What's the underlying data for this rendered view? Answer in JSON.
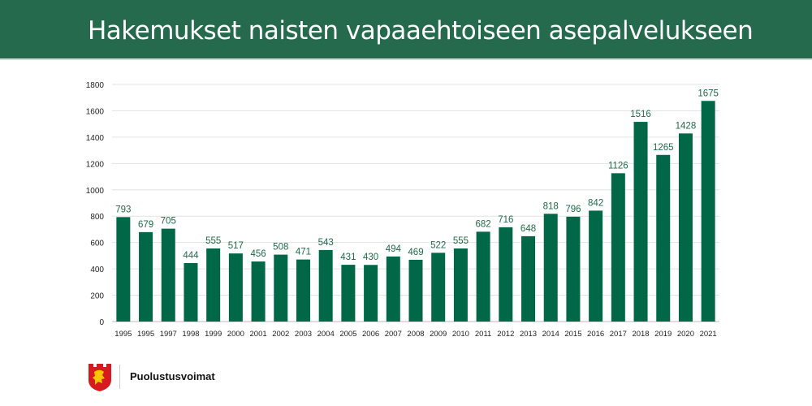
{
  "header": {
    "title": "Hakemukset naisten vapaaehtoiseen asepalvelukseen"
  },
  "footer": {
    "brand": "Puolustusvoimat"
  },
  "colors": {
    "header": "#256a4d",
    "bar": "#006847",
    "label": "#1e6b4a"
  },
  "chart_data": {
    "type": "bar",
    "title": "Hakemukset naisten vapaaehtoiseen asepalvelukseen",
    "categories": [
      "1995",
      "1995",
      "1997",
      "1998",
      "1999",
      "2000",
      "2001",
      "2002",
      "2003",
      "2004",
      "2005",
      "2006",
      "2007",
      "2008",
      "2009",
      "2010",
      "2011",
      "2012",
      "2013",
      "2014",
      "2015",
      "2016",
      "2017",
      "2018",
      "2019",
      "2020",
      "2021"
    ],
    "values": [
      793,
      679,
      705,
      444,
      555,
      517,
      456,
      508,
      471,
      543,
      431,
      430,
      494,
      469,
      522,
      555,
      682,
      716,
      648,
      818,
      796,
      842,
      1126,
      1516,
      1265,
      1428,
      1675
    ],
    "ylim": [
      0,
      1800
    ],
    "yticks": [
      0,
      200,
      400,
      600,
      800,
      1000,
      1200,
      1400,
      1600,
      1800
    ],
    "grid": true,
    "data_labels": true
  }
}
